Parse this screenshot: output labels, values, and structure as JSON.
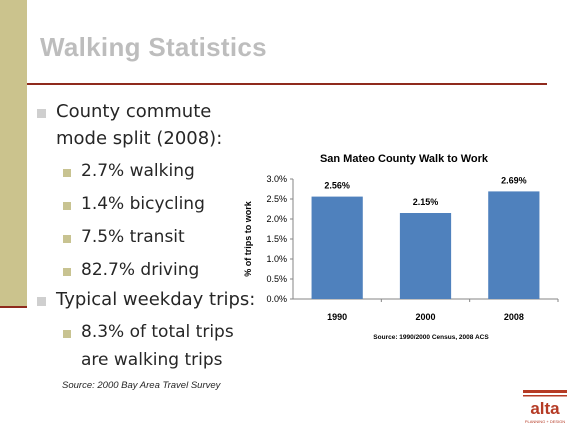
{
  "slide": {
    "title": "Walking Statistics",
    "bullets": [
      {
        "line1": "County commute",
        "line2": "mode split (2008):"
      },
      {
        "line1": "Typical weekday trips:"
      }
    ],
    "sub_bullets_1": [
      "2.7% walking",
      "1.4% bicycling",
      "7.5% transit",
      "82.7% driving"
    ],
    "sub_bullets_2": {
      "line1": "8.3% of total trips",
      "line2": "are walking trips"
    },
    "footnote": "Source: 2000 Bay Area Travel Survey",
    "logo_text": "alta",
    "logo_subtext": "PLANNING + DESIGN",
    "colors": {
      "accent_rule": "#8f2a1d",
      "left_bar": "#cbc38d",
      "bar": "#4f81bd",
      "logo": "#b53b25"
    }
  },
  "chart_data": {
    "type": "bar",
    "title": "San Mateo County Walk to Work",
    "ylabel": "% of trips to work",
    "xlabel": "",
    "categories": [
      "1990",
      "2000",
      "2008"
    ],
    "values": [
      2.56,
      2.15,
      2.69
    ],
    "value_labels": [
      "2.56%",
      "2.15%",
      "2.69%"
    ],
    "ylim": [
      0,
      3.0
    ],
    "yticks": [
      0,
      0.5,
      1.0,
      1.5,
      2.0,
      2.5,
      3.0
    ],
    "ytick_labels": [
      "0.0%",
      "0.5%",
      "1.0%",
      "1.5%",
      "2.0%",
      "2.5%",
      "3.0%"
    ],
    "grid": false,
    "legend": "none",
    "source": "Source: 1990/2000 Census, 2008 ACS"
  }
}
